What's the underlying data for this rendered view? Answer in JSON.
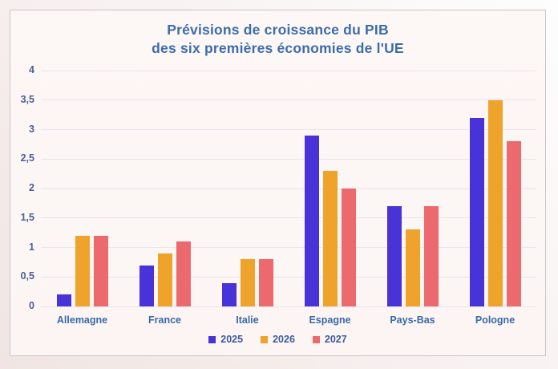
{
  "header": {
    "line1": "Prévisions de croissance du PIB",
    "line2": "des six premières économies de l'UE"
  },
  "chart_data": {
    "type": "bar",
    "title": "Prévisions de croissance du PIB des six premières économies de l'UE",
    "categories": [
      "Allemagne",
      "France",
      "Italie",
      "Espagne",
      "Pays-Bas",
      "Pologne"
    ],
    "series": [
      {
        "name": "2025",
        "color": "#4733d8",
        "values": [
          0.2,
          0.7,
          0.4,
          2.9,
          1.7,
          3.2
        ]
      },
      {
        "name": "2026",
        "color": "#efa32a",
        "values": [
          1.2,
          0.9,
          0.8,
          2.3,
          1.3,
          3.5
        ]
      },
      {
        "name": "2027",
        "color": "#ec6a6d",
        "values": [
          1.2,
          1.1,
          0.8,
          2.0,
          1.7,
          2.8
        ]
      }
    ],
    "xlabel": "",
    "ylabel": "",
    "ylim": [
      0,
      4
    ],
    "yticks": [
      0,
      0.5,
      1,
      1.5,
      2,
      2.5,
      3,
      3.5,
      4
    ],
    "ytick_labels": [
      "0",
      "0,5",
      "1",
      "1,5",
      "2",
      "2,5",
      "3",
      "3,5",
      "4"
    ],
    "grid": true,
    "legend_position": "bottom",
    "decimal_separator": ","
  },
  "colors": {
    "title_text": "#3d6cac",
    "y_axis_text": "#4a6195",
    "category_text": "#3a69a8",
    "legend_text": "#3b5c9d",
    "gridline": "#e9e4ee",
    "card_background": "#fdf6f4",
    "card_border": "#c9c5cb",
    "series_2025": "#4733d8",
    "series_2026": "#efa32a",
    "series_2027": "#ec6a6d"
  }
}
